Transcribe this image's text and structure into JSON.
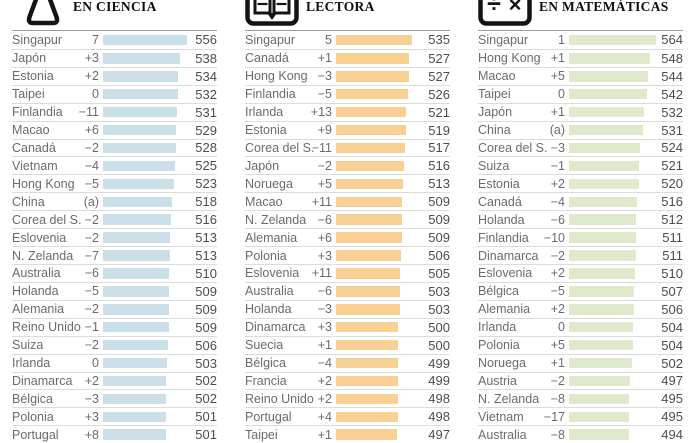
{
  "chart_data": [
    {
      "type": "bar",
      "orientation": "horizontal",
      "title": "EN CIENCIA",
      "icon": "flask-icon",
      "bar_color": "#cbdfe9",
      "value_range": [
        336,
        570
      ],
      "legend": "none",
      "grid": "row-separators-only",
      "categories": [
        "Singapur",
        "Japón",
        "Estonia",
        "Taipei",
        "Finlandia",
        "Macao",
        "Canadá",
        "Vietnam",
        "Hong Kong",
        "China",
        "Corea del S.",
        "Eslovenia",
        "N. Zelanda",
        "Australia",
        "Holanda",
        "Alemania",
        "Reino Unido",
        "Suiza",
        "Irlanda",
        "Dinamarca",
        "Bélgica",
        "Polonia",
        "Portugal"
      ],
      "changes": [
        "7",
        "+3",
        "+2",
        "0",
        "−11",
        "+6",
        "−2",
        "−4",
        "−5",
        "(a)",
        "−2",
        "−2",
        "−7",
        "−6",
        "−5",
        "−2",
        "−1",
        "−2",
        "0",
        "+2",
        "−3",
        "+3",
        "+8"
      ],
      "values": [
        556,
        538,
        534,
        532,
        531,
        529,
        528,
        525,
        523,
        518,
        516,
        513,
        513,
        510,
        509,
        509,
        509,
        506,
        503,
        502,
        502,
        501,
        501
      ]
    },
    {
      "type": "bar",
      "orientation": "horizontal",
      "title": "LECTORA",
      "icon": "open-book-icon",
      "bar_color": "#f8d093",
      "value_range": [
        336,
        570
      ],
      "legend": "none",
      "grid": "row-separators-only",
      "categories": [
        "Singapur",
        "Canadá",
        "Hong Kong",
        "Finlandia",
        "Irlanda",
        "Estonia",
        "Corea del S.",
        "Japón",
        "Noruega",
        "Macao",
        "N. Zelanda",
        "Alemania",
        "Polonia",
        "Eslovenia",
        "Australia",
        "Holanda",
        "Dinamarca",
        "Suecia",
        "Bélgica",
        "Francia",
        "Reino Unido",
        "Portugal",
        "Taipei"
      ],
      "changes": [
        "5",
        "+1",
        "−3",
        "−5",
        "+13",
        "+9",
        "−11",
        "−2",
        "+5",
        "+11",
        "−6",
        "+6",
        "+3",
        "+11",
        "−6",
        "−3",
        "+3",
        "+1",
        "−4",
        "+2",
        "+2",
        "+4",
        "+1"
      ],
      "values": [
        535,
        527,
        527,
        526,
        521,
        519,
        517,
        516,
        513,
        509,
        509,
        509,
        506,
        505,
        503,
        503,
        500,
        500,
        499,
        499,
        498,
        498,
        497
      ]
    },
    {
      "type": "bar",
      "orientation": "horizontal",
      "title": "EN MATEMÁTICAS",
      "icon": "division-multiplication-icon",
      "bar_color": "#dfeacd",
      "value_range": [
        336,
        570
      ],
      "legend": "none",
      "grid": "row-separators-only",
      "categories": [
        "Singapur",
        "Hong Kong",
        "Macao",
        "Taipei",
        "Japón",
        "China",
        "Corea del S.",
        "Suiza",
        "Estonia",
        "Canadá",
        "Holanda",
        "Finlandia",
        "Dinamarca",
        "Eslovenia",
        "Bélgica",
        "Alemania",
        "Irlanda",
        "Polonia",
        "Noruega",
        "Austria",
        "N. Zelanda",
        "Vietnam",
        "Australia"
      ],
      "changes": [
        "1",
        "+1",
        "+5",
        "0",
        "+1",
        "(a)",
        "−3",
        "−1",
        "+2",
        "−4",
        "−6",
        "−10",
        "−2",
        "+2",
        "−5",
        "+2",
        "0",
        "+5",
        "+1",
        "−2",
        "−8",
        "−17",
        "−8"
      ],
      "values": [
        564,
        548,
        544,
        542,
        532,
        531,
        524,
        521,
        520,
        516,
        512,
        511,
        511,
        510,
        507,
        506,
        504,
        504,
        502,
        497,
        495,
        495,
        494
      ]
    }
  ]
}
